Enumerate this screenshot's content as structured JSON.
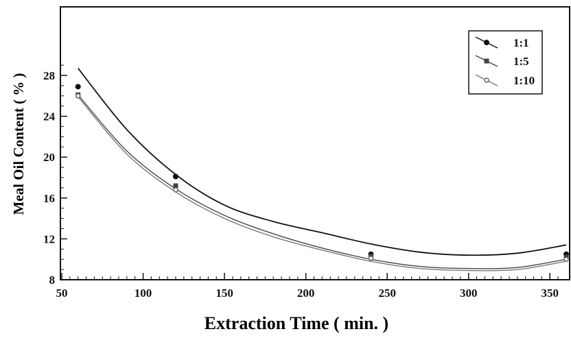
{
  "chart_data": {
    "type": "scatter",
    "xlabel": "Extraction Time ( min. )",
    "ylabel": "Meal Oil Content ( % )",
    "xlim": [
      50,
      360
    ],
    "ylim": [
      8,
      30
    ],
    "xticks": [
      50,
      100,
      150,
      200,
      250,
      300,
      350
    ],
    "yticks": [
      8,
      12,
      16,
      20,
      24,
      28
    ],
    "legend_position": "top-right",
    "x": [
      60,
      120,
      240,
      360
    ],
    "series": [
      {
        "name": "1:1",
        "values": [
          26.9,
          18.1,
          10.5,
          10.5
        ],
        "fit_curve": {
          "x": [
            60,
            90,
            120,
            150,
            180,
            210,
            240,
            270,
            300,
            330,
            360
          ],
          "y": [
            28.7,
            22.7,
            18.3,
            15.3,
            13.7,
            12.6,
            11.5,
            10.7,
            10.4,
            10.6,
            11.4
          ]
        },
        "color": "#111111"
      },
      {
        "name": "1:5",
        "values": [
          26.1,
          17.2,
          10.3,
          10.2
        ],
        "fit_curve": {
          "x": [
            60,
            90,
            120,
            150,
            180,
            210,
            240,
            270,
            300,
            330,
            360
          ],
          "y": [
            26.1,
            20.6,
            16.9,
            14.3,
            12.5,
            11.1,
            10.0,
            9.3,
            9.1,
            9.2,
            10.0
          ]
        },
        "color": "#444444"
      },
      {
        "name": "1:10",
        "values": [
          26.0,
          16.8,
          10.1,
          10.0
        ],
        "fit_curve": {
          "x": [
            60,
            90,
            120,
            150,
            180,
            210,
            240,
            270,
            300,
            330,
            360
          ],
          "y": [
            25.9,
            20.3,
            16.6,
            14.0,
            12.2,
            10.9,
            9.8,
            9.1,
            8.9,
            9.0,
            9.8
          ]
        },
        "color": "#777777"
      }
    ]
  }
}
